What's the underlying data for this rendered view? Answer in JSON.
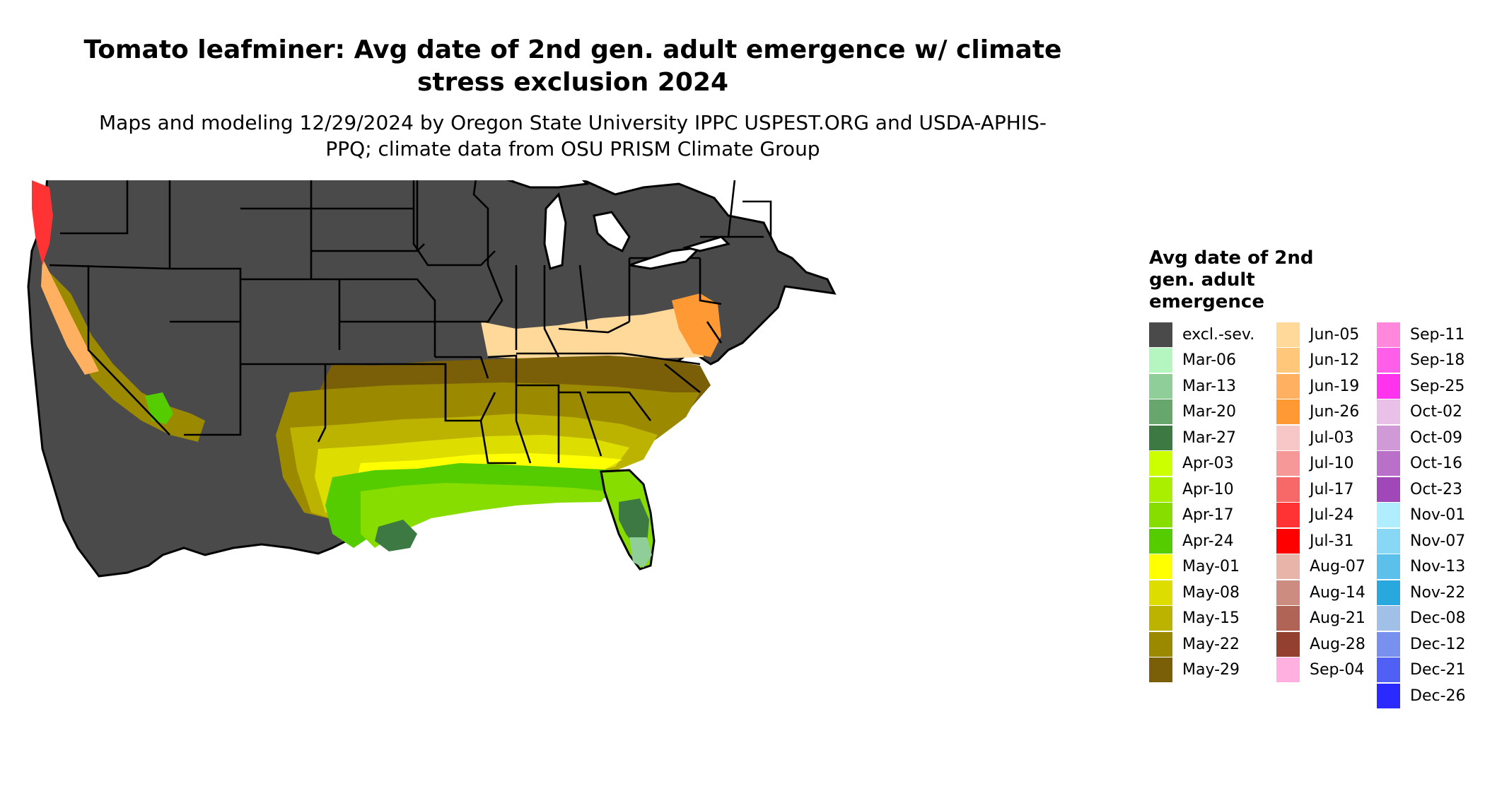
{
  "title": "Tomato leafminer: Avg date of 2nd gen. adult emergence w/ climate stress exclusion 2024",
  "subtitle": "Maps and modeling 12/29/2024 by Oregon State University IPPC USPEST.ORG and USDA-APHIS-PPQ; climate data from OSU PRISM Climate Group",
  "legend": {
    "title": "Avg date of 2nd gen. adult emergence",
    "items": [
      {
        "label": "excl.-sev.",
        "color": "#4a4a4a"
      },
      {
        "label": "Mar-06",
        "color": "#b5f5c0"
      },
      {
        "label": "Mar-13",
        "color": "#8fce98"
      },
      {
        "label": "Mar-20",
        "color": "#67a76d"
      },
      {
        "label": "Mar-27",
        "color": "#3d7a43"
      },
      {
        "label": "Apr-03",
        "color": "#ccff00"
      },
      {
        "label": "Apr-10",
        "color": "#aaee00"
      },
      {
        "label": "Apr-17",
        "color": "#88dd00"
      },
      {
        "label": "Apr-24",
        "color": "#55cc00"
      },
      {
        "label": "May-01",
        "color": "#ffff00"
      },
      {
        "label": "May-08",
        "color": "#dddd00"
      },
      {
        "label": "May-15",
        "color": "#bbb300"
      },
      {
        "label": "May-22",
        "color": "#9b8900"
      },
      {
        "label": "May-29",
        "color": "#7a5f08"
      },
      {
        "label": "Jun-05",
        "color": "#ffd99a"
      },
      {
        "label": "Jun-12",
        "color": "#ffc77a"
      },
      {
        "label": "Jun-19",
        "color": "#ffb060"
      },
      {
        "label": "Jun-26",
        "color": "#ff9933"
      },
      {
        "label": "Jul-03",
        "color": "#f7c6c6"
      },
      {
        "label": "Jul-10",
        "color": "#f79898"
      },
      {
        "label": "Jul-17",
        "color": "#f76868"
      },
      {
        "label": "Jul-24",
        "color": "#ff3333"
      },
      {
        "label": "Jul-31",
        "color": "#ff0000"
      },
      {
        "label": "Aug-07",
        "color": "#e8b4aa"
      },
      {
        "label": "Aug-14",
        "color": "#cc8c80"
      },
      {
        "label": "Aug-21",
        "color": "#b06455"
      },
      {
        "label": "Aug-28",
        "color": "#934030"
      },
      {
        "label": "Sep-04",
        "color": "#ffb0e0"
      },
      {
        "label": "Sep-11",
        "color": "#ff88dd"
      },
      {
        "label": "Sep-18",
        "color": "#ff5ee8"
      },
      {
        "label": "Sep-25",
        "color": "#ff33ee"
      },
      {
        "label": "Oct-02",
        "color": "#e8c0e8"
      },
      {
        "label": "Oct-09",
        "color": "#d09ad6"
      },
      {
        "label": "Oct-16",
        "color": "#b870c8"
      },
      {
        "label": "Oct-23",
        "color": "#a048b8"
      },
      {
        "label": "Nov-01",
        "color": "#b0eeff"
      },
      {
        "label": "Nov-07",
        "color": "#88d8f5"
      },
      {
        "label": "Nov-13",
        "color": "#5cc0ea"
      },
      {
        "label": "Nov-22",
        "color": "#28a8dd"
      },
      {
        "label": "Dec-08",
        "color": "#a0c0e8"
      },
      {
        "label": "Dec-12",
        "color": "#7890ee"
      },
      {
        "label": "Dec-21",
        "color": "#5060f5"
      },
      {
        "label": "Dec-26",
        "color": "#2a2aff"
      }
    ]
  },
  "map": {
    "excluded_color": "#4a4a4a",
    "border_color": "#000000",
    "background": "#ffffff"
  }
}
